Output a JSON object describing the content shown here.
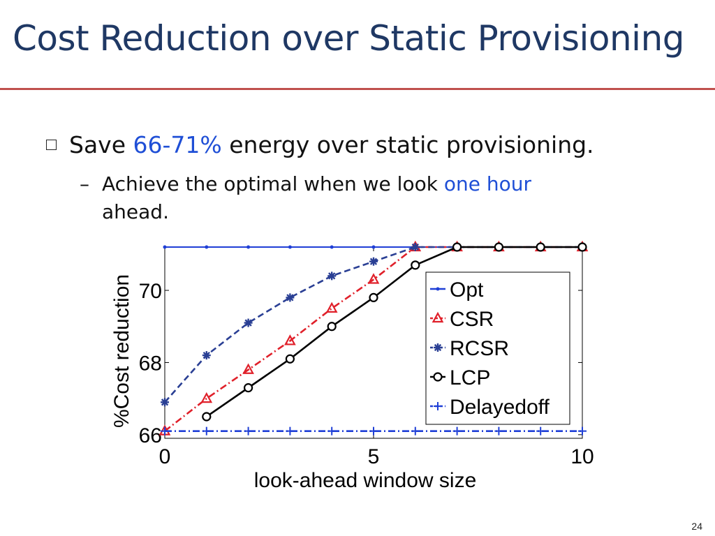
{
  "slide": {
    "title": "Cost Reduction over Static Provisioning",
    "bullet": {
      "pre": "Save ",
      "highlight": "66-71%",
      "post": " energy over static provisioning."
    },
    "sub": {
      "dash": "–",
      "pre": "Achieve the optimal when we look ",
      "highlight": "one hour",
      "post": "ahead."
    },
    "page_number": "24",
    "colors": {
      "title": "#1f3864",
      "rule": "#c0504d",
      "highlight": "#1f4fd6"
    }
  },
  "chart_data": {
    "type": "line",
    "xlabel": "look-ahead window size",
    "ylabel": "%Cost reduction",
    "xlim": [
      0,
      10
    ],
    "ylim": [
      65.9,
      71.2
    ],
    "xticks": [
      "0",
      "5",
      "10"
    ],
    "yticks": [
      "66",
      "68",
      "70"
    ],
    "legend_position": "right",
    "series": [
      {
        "name": "Opt",
        "color": "#1f3fd6",
        "marker": "dot",
        "dash": "solid",
        "x": [
          0,
          1,
          2,
          3,
          4,
          5,
          6,
          7,
          8,
          9,
          10
        ],
        "y": [
          71.2,
          71.2,
          71.2,
          71.2,
          71.2,
          71.2,
          71.2,
          71.2,
          71.2,
          71.2,
          71.2
        ]
      },
      {
        "name": "CSR",
        "color": "#e0202a",
        "marker": "triangle",
        "dash": "dashdot",
        "x": [
          0,
          1,
          2,
          3,
          4,
          5,
          6,
          7,
          8,
          9,
          10
        ],
        "y": [
          66.1,
          67.0,
          67.8,
          68.6,
          69.5,
          70.3,
          71.2,
          71.2,
          71.2,
          71.2,
          71.2
        ]
      },
      {
        "name": "RCSR",
        "color": "#2a3f94",
        "marker": "star",
        "dash": "dash",
        "x": [
          0,
          1,
          2,
          3,
          4,
          5,
          6,
          7,
          8,
          9,
          10
        ],
        "y": [
          66.9,
          68.2,
          69.1,
          69.8,
          70.4,
          70.8,
          71.2,
          71.2,
          71.2,
          71.2,
          71.2
        ]
      },
      {
        "name": "LCP",
        "color": "#000000",
        "marker": "circle",
        "dash": "solid",
        "x": [
          1,
          2,
          3,
          4,
          5,
          6,
          7,
          8,
          9,
          10
        ],
        "y": [
          66.5,
          67.3,
          68.1,
          69.0,
          69.8,
          70.7,
          71.2,
          71.2,
          71.2,
          71.2
        ]
      },
      {
        "name": "Delayedoff",
        "color": "#1f3fd6",
        "marker": "plus",
        "dash": "dashdot",
        "x": [
          0,
          1,
          2,
          3,
          4,
          5,
          6,
          7,
          8,
          9,
          10
        ],
        "y": [
          66.1,
          66.1,
          66.1,
          66.1,
          66.1,
          66.1,
          66.1,
          66.1,
          66.1,
          66.1,
          66.1
        ]
      }
    ]
  }
}
